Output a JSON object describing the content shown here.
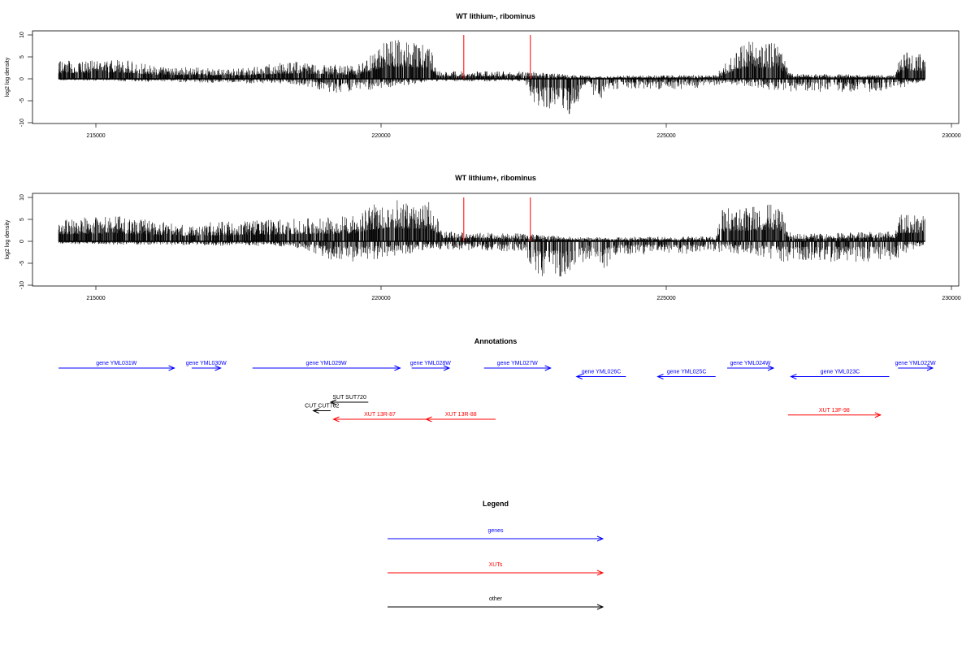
{
  "chart_data": [
    {
      "type": "bar",
      "title": "WT lithium-, ribominus",
      "ylabel": "log2 log density",
      "xlabel": "",
      "xlim": [
        214000,
        230000
      ],
      "ylim": [
        -10,
        10
      ],
      "x_ticks": [
        "215000",
        "220000",
        "225000",
        "230000"
      ],
      "y_ticks": [
        "10",
        "5",
        "0",
        "-5",
        "-10"
      ],
      "markers": [
        221450,
        222600
      ],
      "data_range": [
        214450,
        229420
      ],
      "positive_profile": [
        {
          "x": 214450,
          "y": 3.5
        },
        {
          "x": 215500,
          "y": 4.0
        },
        {
          "x": 216200,
          "y": 2.5
        },
        {
          "x": 217500,
          "y": 2.0
        },
        {
          "x": 218500,
          "y": 3.5
        },
        {
          "x": 219600,
          "y": 2.5
        },
        {
          "x": 220150,
          "y": 8.0
        },
        {
          "x": 220850,
          "y": 7.0
        },
        {
          "x": 221000,
          "y": 1.5
        },
        {
          "x": 222500,
          "y": 1.5
        },
        {
          "x": 223600,
          "y": 0.6
        },
        {
          "x": 225800,
          "y": 0.8
        },
        {
          "x": 226000,
          "y": 3.5
        },
        {
          "x": 226300,
          "y": 7.5
        },
        {
          "x": 226900,
          "y": 7.0
        },
        {
          "x": 227100,
          "y": 1.0
        },
        {
          "x": 228900,
          "y": 0.8
        },
        {
          "x": 229000,
          "y": 5.5
        },
        {
          "x": 229420,
          "y": 5.0
        }
      ],
      "negative_profile": [
        {
          "x": 214450,
          "y": -0.3
        },
        {
          "x": 218500,
          "y": -1.0
        },
        {
          "x": 219300,
          "y": -3.0
        },
        {
          "x": 220000,
          "y": -2.0
        },
        {
          "x": 220900,
          "y": -0.5
        },
        {
          "x": 222500,
          "y": -0.5
        },
        {
          "x": 222700,
          "y": -6.0
        },
        {
          "x": 223300,
          "y": -7.0
        },
        {
          "x": 223600,
          "y": -1.5
        },
        {
          "x": 223800,
          "y": -6.0
        },
        {
          "x": 224000,
          "y": -2.0
        },
        {
          "x": 225300,
          "y": -2.0
        },
        {
          "x": 226000,
          "y": -1.0
        },
        {
          "x": 227000,
          "y": -2.5
        },
        {
          "x": 228800,
          "y": -2.5
        },
        {
          "x": 229420,
          "y": -0.3
        }
      ]
    },
    {
      "type": "bar",
      "title": "WT lithium+, ribominus",
      "ylabel": "log2 log density",
      "xlabel": "",
      "xlim": [
        214000,
        230000
      ],
      "ylim": [
        -10,
        10
      ],
      "x_ticks": [
        "215000",
        "220000",
        "225000",
        "230000"
      ],
      "y_ticks": [
        "10",
        "5",
        "0",
        "-5",
        "-10"
      ],
      "markers": [
        221450,
        222600
      ],
      "data_range": [
        214450,
        229420
      ],
      "positive_profile": [
        {
          "x": 214450,
          "y": 4.5
        },
        {
          "x": 215500,
          "y": 5.0
        },
        {
          "x": 216500,
          "y": 3.5
        },
        {
          "x": 217500,
          "y": 4.0
        },
        {
          "x": 218500,
          "y": 4.5
        },
        {
          "x": 219500,
          "y": 5.0
        },
        {
          "x": 220100,
          "y": 8.5
        },
        {
          "x": 220850,
          "y": 8.0
        },
        {
          "x": 221100,
          "y": 2.0
        },
        {
          "x": 222500,
          "y": 1.5
        },
        {
          "x": 223500,
          "y": 0.8
        },
        {
          "x": 225800,
          "y": 1.0
        },
        {
          "x": 225900,
          "y": 6.5
        },
        {
          "x": 226900,
          "y": 7.5
        },
        {
          "x": 227100,
          "y": 1.5
        },
        {
          "x": 228900,
          "y": 2.0
        },
        {
          "x": 229000,
          "y": 5.5
        },
        {
          "x": 229420,
          "y": 5.0
        }
      ],
      "negative_profile": [
        {
          "x": 214450,
          "y": -0.5
        },
        {
          "x": 218500,
          "y": -1.0
        },
        {
          "x": 219300,
          "y": -4.0
        },
        {
          "x": 220000,
          "y": -3.5
        },
        {
          "x": 220900,
          "y": -1.5
        },
        {
          "x": 222500,
          "y": -2.0
        },
        {
          "x": 222700,
          "y": -6.5
        },
        {
          "x": 223300,
          "y": -7.5
        },
        {
          "x": 223600,
          "y": -3.0
        },
        {
          "x": 223800,
          "y": -6.5
        },
        {
          "x": 224100,
          "y": -2.5
        },
        {
          "x": 225300,
          "y": -2.5
        },
        {
          "x": 226000,
          "y": -2.0
        },
        {
          "x": 227000,
          "y": -4.0
        },
        {
          "x": 228800,
          "y": -4.0
        },
        {
          "x": 229420,
          "y": -0.5
        }
      ]
    }
  ],
  "annotations": {
    "title": "Annotations",
    "xlim": [
      214000,
      230000
    ],
    "items": [
      {
        "label": "gene YML031W",
        "start": 214450,
        "end": 216450,
        "strand": "+",
        "kind": "gene",
        "row": 0
      },
      {
        "label": "gene YML030W",
        "start": 216750,
        "end": 217250,
        "strand": "+",
        "kind": "gene",
        "row": 0
      },
      {
        "label": "gene YML029W",
        "start": 217800,
        "end": 220350,
        "strand": "+",
        "kind": "gene",
        "row": 0
      },
      {
        "label": "gene YML028W",
        "start": 220550,
        "end": 221200,
        "strand": "+",
        "kind": "gene",
        "row": 0
      },
      {
        "label": "gene YML027W",
        "start": 221800,
        "end": 222950,
        "strand": "+",
        "kind": "gene",
        "row": 0
      },
      {
        "label": "gene YML026C",
        "start": 223400,
        "end": 224250,
        "strand": "-",
        "kind": "gene",
        "row": 1
      },
      {
        "label": "gene YML025C",
        "start": 224800,
        "end": 225800,
        "strand": "-",
        "kind": "gene",
        "row": 1
      },
      {
        "label": "gene YML024W",
        "start": 226000,
        "end": 226800,
        "strand": "+",
        "kind": "gene",
        "row": 0
      },
      {
        "label": "gene YML023C",
        "start": 227100,
        "end": 228800,
        "strand": "-",
        "kind": "gene",
        "row": 1
      },
      {
        "label": "gene YML022W",
        "start": 228950,
        "end": 229550,
        "strand": "+",
        "kind": "gene",
        "row": 0
      },
      {
        "label": "SUT SUT720",
        "start": 219150,
        "end": 219800,
        "strand": "-",
        "kind": "other",
        "row": 4
      },
      {
        "label": "CUT CUT762",
        "start": 218850,
        "end": 219150,
        "strand": "-",
        "kind": "other",
        "row": 5
      },
      {
        "label": "XUT 13R-87",
        "start": 219200,
        "end": 220800,
        "strand": "-",
        "kind": "xut",
        "row": 6
      },
      {
        "label": "XUT 13R-88",
        "start": 220800,
        "end": 222000,
        "strand": "-",
        "kind": "xut",
        "row": 6
      },
      {
        "label": "XUT 13F-98",
        "start": 227050,
        "end": 228650,
        "strand": "+",
        "kind": "xut",
        "row": 5.5
      }
    ]
  },
  "legend": {
    "title": "Legend",
    "items": [
      {
        "label": "genes",
        "kind": "gene"
      },
      {
        "label": "XUTs",
        "kind": "xut"
      },
      {
        "label": "other",
        "kind": "other"
      }
    ]
  },
  "colors": {
    "gene": "#0000ff",
    "xut": "#ff0000",
    "other": "#000000",
    "marker": "#ff0000",
    "bars": "#000000"
  }
}
